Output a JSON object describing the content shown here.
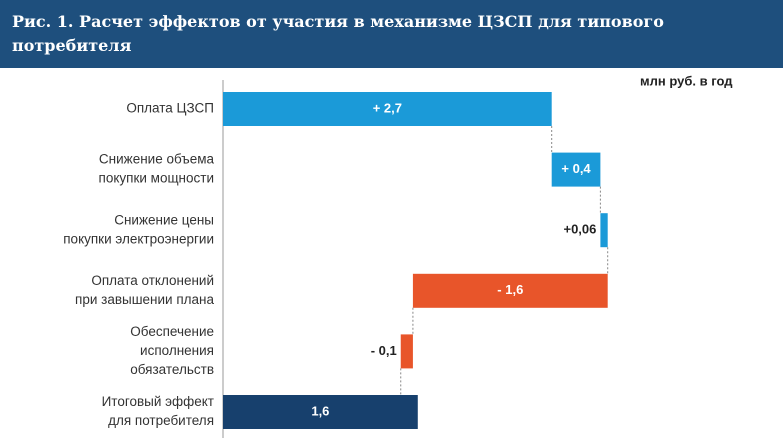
{
  "chart_data": {
    "type": "waterfall",
    "title": "Рис. 1. Расчет эффектов от участия в механизме ЦЗСП для типового потребителя",
    "unit_label": "млн руб. в год",
    "categories": [
      [
        "Оплата ЦЗСП"
      ],
      [
        "Снижение объема",
        "покупки мощности"
      ],
      [
        "Снижение цены",
        "покупки электроэнергии"
      ],
      [
        "Оплата отклонений",
        "при завышении плана"
      ],
      [
        "Обеспечение",
        "исполнения",
        "обязательств"
      ],
      [
        "Итоговый эффект",
        "для потребителя"
      ]
    ],
    "values": [
      2.7,
      0.4,
      0.06,
      -1.6,
      -0.1,
      1.6
    ],
    "value_labels": [
      "+ 2,7",
      "+ 0,4",
      "+0,06",
      "- 1,6",
      "- 0,1",
      "1,6"
    ],
    "colors": [
      "#1b9ad8",
      "#1b9ad8",
      "#1b9ad8",
      "#e8552a",
      "#e8552a",
      "#17406d"
    ],
    "xlim": [
      0,
      4.6
    ]
  }
}
